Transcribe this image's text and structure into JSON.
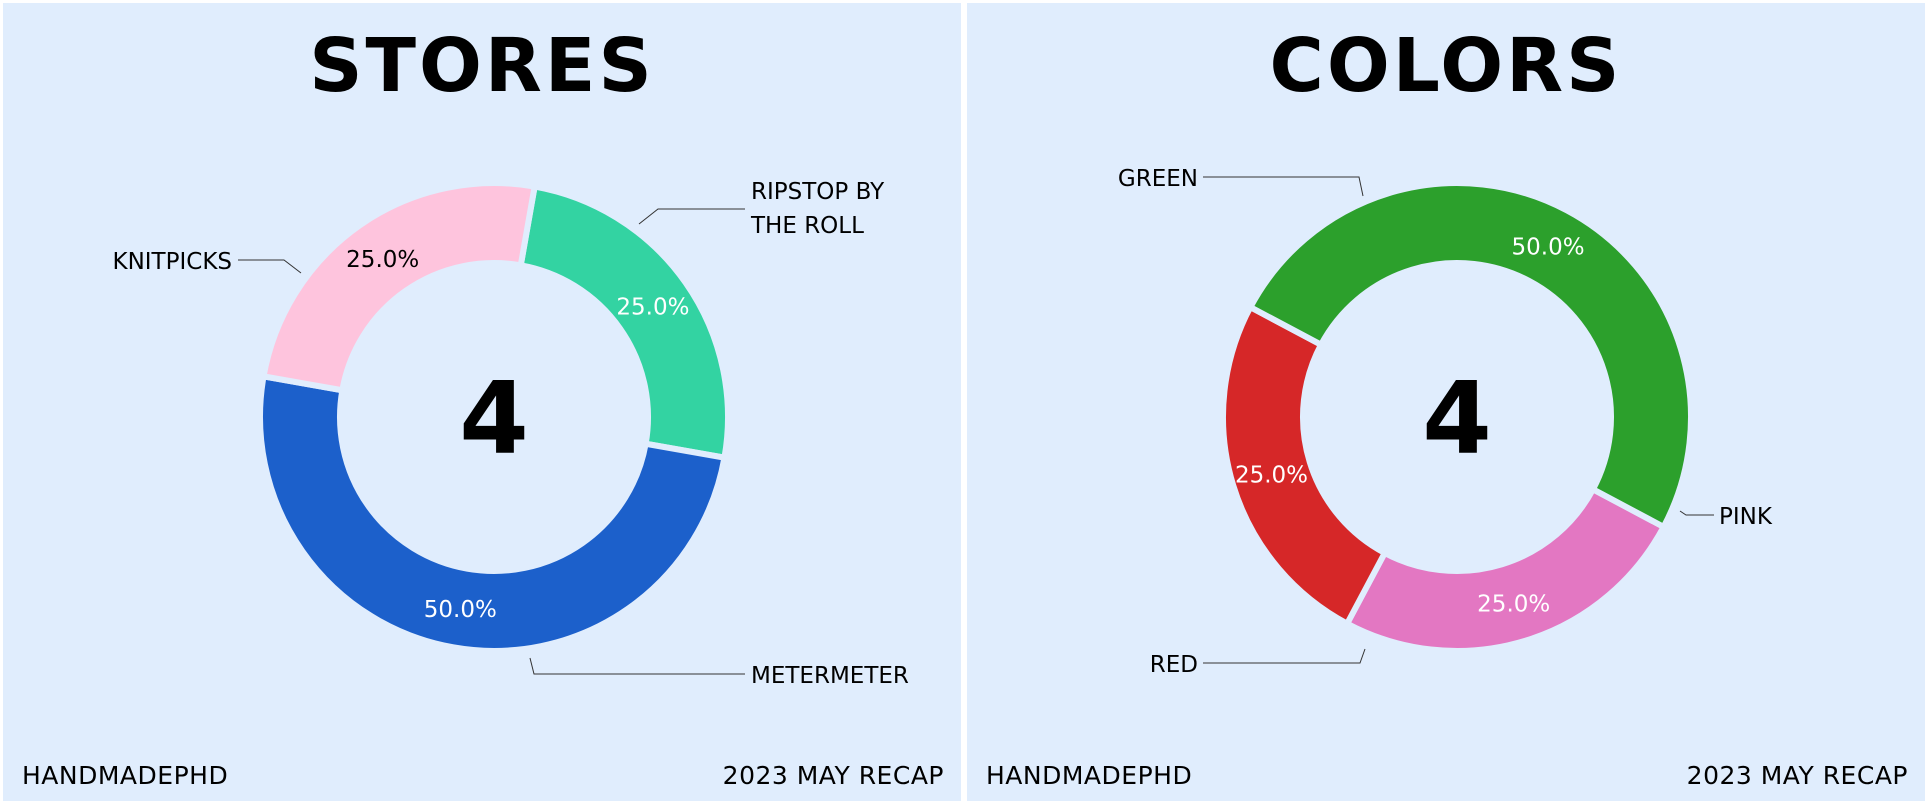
{
  "footer": {
    "brand": "HANDMADEPHD",
    "period": "2023 MAY RECAP"
  },
  "chart_data": [
    {
      "type": "pie",
      "title": "STORES",
      "center_value": "4",
      "slices": [
        {
          "label": "RIPSTOP BY THE ROLL",
          "label_lines": [
            "RIPSTOP BY",
            "THE ROLL"
          ],
          "value": 25.0,
          "pct_label": "25.0%",
          "color": "#33d3a2",
          "pct_color": "#ffffff"
        },
        {
          "label": "METERMETER",
          "label_lines": [
            "METERMETER"
          ],
          "value": 50.0,
          "pct_label": "50.0%",
          "color": "#1c60cb",
          "pct_color": "#ffffff"
        },
        {
          "label": "KNITPICKS",
          "label_lines": [
            "KNITPICKS"
          ],
          "value": 25.0,
          "pct_label": "25.0%",
          "color": "#fec4dd",
          "pct_color": "#000000"
        }
      ]
    },
    {
      "type": "pie",
      "title": "COLORS",
      "center_value": "4",
      "slices": [
        {
          "label": "PINK",
          "label_lines": [
            "PINK"
          ],
          "value": 25.0,
          "pct_label": "25.0%",
          "color": "#e377c2",
          "pct_color": "#ffffff"
        },
        {
          "label": "RED",
          "label_lines": [
            "RED"
          ],
          "value": 25.0,
          "pct_label": "25.0%",
          "color": "#d62728",
          "pct_color": "#ffffff"
        },
        {
          "label": "GREEN",
          "label_lines": [
            "GREEN"
          ],
          "value": 50.0,
          "pct_label": "50.0%",
          "color": "#2ca02c",
          "pct_color": "#ffffff"
        }
      ]
    }
  ]
}
